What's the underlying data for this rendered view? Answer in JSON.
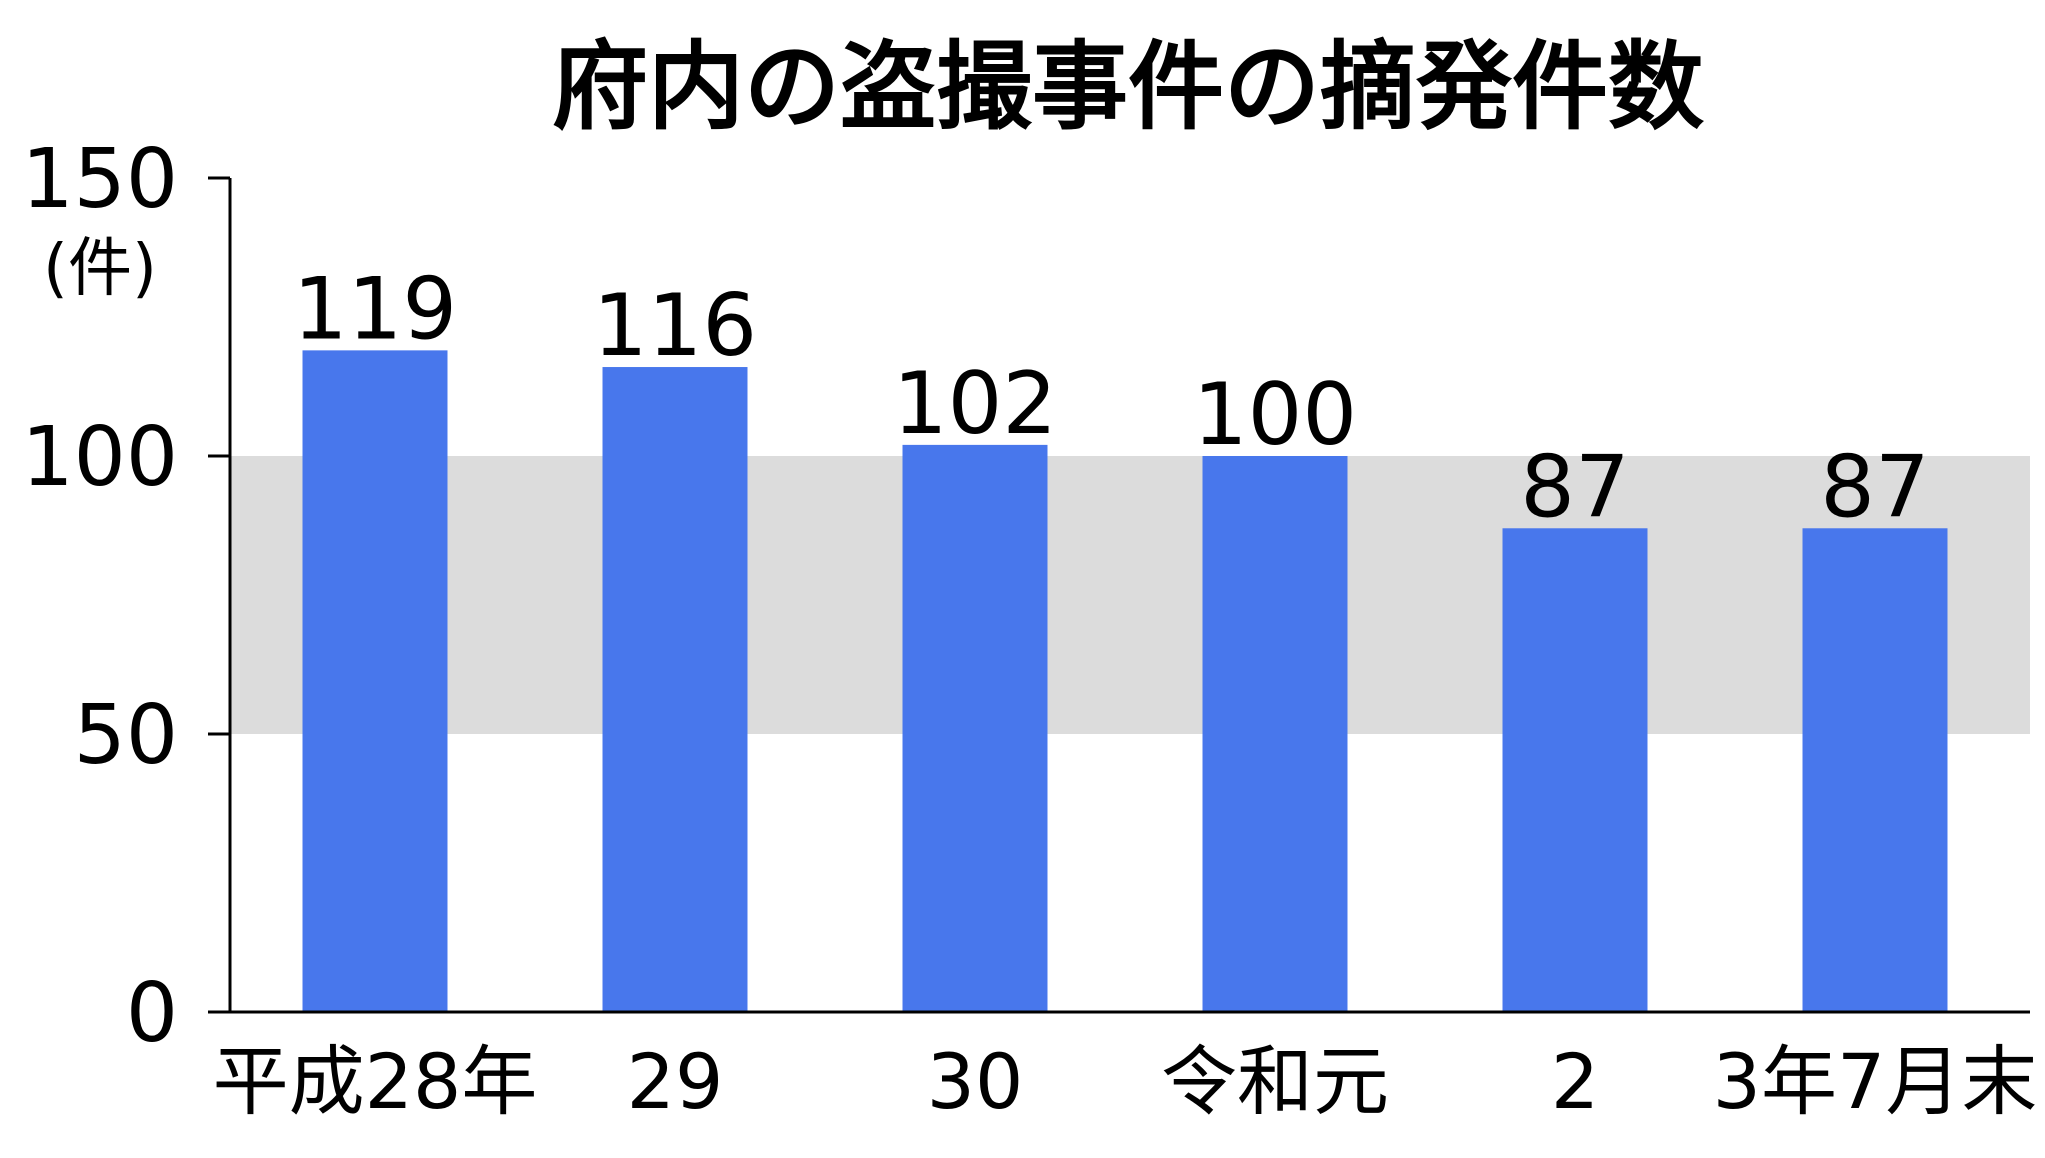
{
  "chart_data": {
    "type": "bar",
    "title": "府内の盗撮事件の摘発件数",
    "unit": "(件)",
    "categories": [
      "平成28年",
      "29",
      "30",
      "令和元",
      "2",
      "3年7月末"
    ],
    "values": [
      119,
      116,
      102,
      100,
      87,
      87
    ],
    "ylim": [
      0,
      150
    ],
    "yticks": [
      0,
      50,
      100,
      150
    ],
    "band": [
      50,
      100
    ],
    "grid": false,
    "legend": "none",
    "colors": {
      "bar": "#4877ec",
      "band": "#dcdcdc",
      "axis": "#000000"
    }
  }
}
